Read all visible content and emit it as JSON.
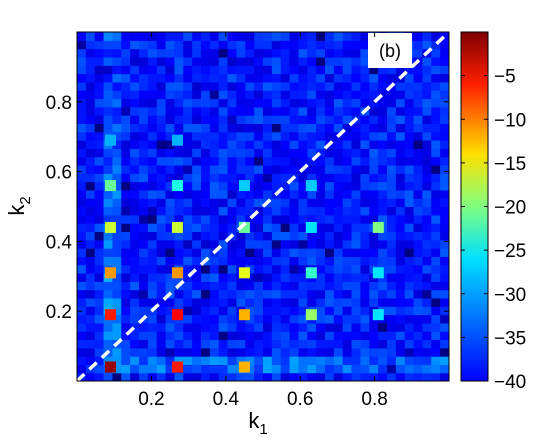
{
  "chart_data": {
    "type": "heatmap",
    "panel_label": "(b)",
    "xlabel": "k",
    "xlabel_sub": "1",
    "ylabel": "k",
    "ylabel_sub": "2",
    "xlim": [
      0.0,
      1.0
    ],
    "ylim": [
      0.0,
      1.0
    ],
    "xticks": [
      {
        "value": 0.2,
        "label": "0.2"
      },
      {
        "value": 0.4,
        "label": "0.4"
      },
      {
        "value": 0.6,
        "label": "0.6"
      },
      {
        "value": 0.8,
        "label": "0.8"
      }
    ],
    "yticks": [
      {
        "value": 0.2,
        "label": "0.2"
      },
      {
        "value": 0.4,
        "label": "0.4"
      },
      {
        "value": 0.6,
        "label": "0.6"
      },
      {
        "value": 0.8,
        "label": "0.8"
      }
    ],
    "grid": false,
    "colormap": "jet",
    "color_range": [
      -40,
      0
    ],
    "colorbar_ticks": [
      {
        "value": -5,
        "label": "−5"
      },
      {
        "value": -10,
        "label": "−10"
      },
      {
        "value": -15,
        "label": "−15"
      },
      {
        "value": -20,
        "label": "−20"
      },
      {
        "value": -25,
        "label": "−25"
      },
      {
        "value": -30,
        "label": "−30"
      },
      {
        "value": -35,
        "label": "−35"
      },
      {
        "value": -40,
        "label": "−40"
      }
    ],
    "background_level": -34,
    "diagonal": {
      "style": "dashed",
      "color": "#ffffff",
      "from": [
        0.0,
        0.0
      ],
      "to": [
        1.0,
        1.0
      ]
    },
    "peaks": [
      {
        "k1": 0.09,
        "k2": 0.04,
        "value": -1
      },
      {
        "k1": 0.27,
        "k2": 0.04,
        "value": -6
      },
      {
        "k1": 0.45,
        "k2": 0.04,
        "value": -12
      },
      {
        "k1": 0.09,
        "k2": 0.19,
        "value": -6
      },
      {
        "k1": 0.27,
        "k2": 0.19,
        "value": -5
      },
      {
        "k1": 0.45,
        "k2": 0.19,
        "value": -12
      },
      {
        "k1": 0.63,
        "k2": 0.19,
        "value": -19
      },
      {
        "k1": 0.81,
        "k2": 0.19,
        "value": -26
      },
      {
        "k1": 0.09,
        "k2": 0.31,
        "value": -11
      },
      {
        "k1": 0.27,
        "k2": 0.31,
        "value": -11
      },
      {
        "k1": 0.45,
        "k2": 0.31,
        "value": -16
      },
      {
        "k1": 0.63,
        "k2": 0.31,
        "value": -23
      },
      {
        "k1": 0.81,
        "k2": 0.31,
        "value": -26
      },
      {
        "k1": 0.09,
        "k2": 0.44,
        "value": -17
      },
      {
        "k1": 0.27,
        "k2": 0.44,
        "value": -17
      },
      {
        "k1": 0.45,
        "k2": 0.44,
        "value": -21
      },
      {
        "k1": 0.63,
        "k2": 0.44,
        "value": -26
      },
      {
        "k1": 0.81,
        "k2": 0.44,
        "value": -20
      },
      {
        "k1": 0.09,
        "k2": 0.56,
        "value": -21
      },
      {
        "k1": 0.27,
        "k2": 0.56,
        "value": -24
      },
      {
        "k1": 0.45,
        "k2": 0.56,
        "value": -27
      },
      {
        "k1": 0.63,
        "k2": 0.56,
        "value": -27
      },
      {
        "k1": 0.27,
        "k2": 0.69,
        "value": -28
      },
      {
        "k1": 0.09,
        "k2": 0.69,
        "value": -28
      }
    ]
  }
}
